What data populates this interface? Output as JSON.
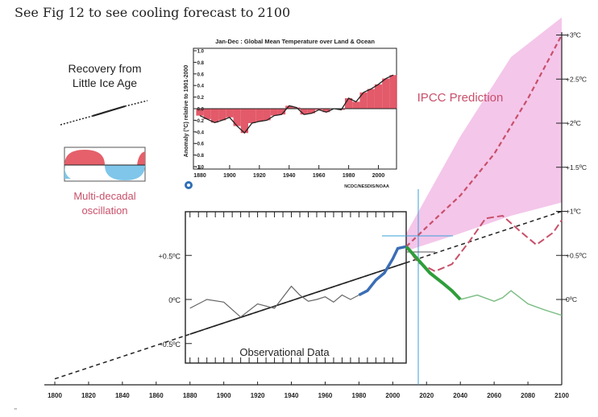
{
  "page": {
    "caption": "See Fig 12 to see cooling forecast to 2100",
    "footer_mark": "\""
  },
  "colors": {
    "ipcc": "#c8506a",
    "ipcc_fill": "#f4c6ea",
    "obs_blue": "#3b6db5",
    "forecast_green": "#2e9e3a",
    "forecast_light": "#7fbf87",
    "trend": "#222222",
    "guide_blue": "#3aa0d6",
    "inset_bar": "#e0485a",
    "osc_red": "#e5606a",
    "osc_blue": "#7fc6ea"
  },
  "chart_data": [
    {
      "type": "line",
      "title": "",
      "x_ticks": [
        "1800",
        "1820",
        "1840",
        "1860",
        "1880",
        "1900",
        "1920",
        "1940",
        "1960",
        "1980",
        "2000",
        "2020",
        "2040",
        "2060",
        "2080",
        "2100"
      ],
      "right_axis_ticks": [
        "+3ºC",
        "+2.5ºC",
        "+2ºC",
        "+1.5ºC",
        "+1ºC",
        "+0.5ºC",
        "0ºC"
      ],
      "xlim": [
        1800,
        2100
      ],
      "ylim": [
        -0.9,
        3.2
      ],
      "labels": {
        "recovery": [
          "Recovery from",
          "Little  Ice Age"
        ],
        "oscillation": [
          "Multi-decadal",
          "oscillation"
        ],
        "ipcc": "IPCC Prediction"
      },
      "series": [
        {
          "name": "Recovery from Little Ice Age trend",
          "x": [
            1800,
            2100
          ],
          "y": [
            -0.9,
            1.0
          ]
        },
        {
          "name": "IPCC Prediction",
          "x": [
            2008,
            2020,
            2040,
            2060,
            2080,
            2100
          ],
          "y": [
            0.6,
            0.82,
            1.18,
            1.65,
            2.28,
            3.0
          ]
        },
        {
          "name": "IPCC range upper",
          "x": [
            2008,
            2040,
            2070,
            2100
          ],
          "y": [
            0.75,
            1.85,
            2.75,
            3.2
          ]
        },
        {
          "name": "IPCC range lower",
          "x": [
            2008,
            2040,
            2070,
            2100
          ],
          "y": [
            0.55,
            0.75,
            0.95,
            1.1
          ]
        },
        {
          "name": "Multi-decadal oscillation projection",
          "x": [
            2008,
            2015,
            2025,
            2035,
            2045,
            2055,
            2065,
            2075,
            2085,
            2095,
            2100
          ],
          "y": [
            0.6,
            0.42,
            0.32,
            0.4,
            0.65,
            0.92,
            0.95,
            0.78,
            0.62,
            0.76,
            0.9
          ]
        },
        {
          "name": "Cooling forecast",
          "x": [
            2008,
            2015,
            2022,
            2030,
            2035,
            2040
          ],
          "y": [
            0.6,
            0.45,
            0.3,
            0.18,
            0.1,
            0.0
          ]
        },
        {
          "name": "Cooling forecast continuation",
          "x": [
            2040,
            2050,
            2060,
            2065,
            2070,
            2080,
            2090,
            2100
          ],
          "y": [
            0.0,
            0.05,
            -0.02,
            0.02,
            0.1,
            -0.05,
            -0.12,
            -0.18
          ]
        }
      ]
    },
    {
      "type": "line",
      "title": "Observational Data",
      "y_ticks": [
        "+0.5ºC",
        "0ºC",
        "-0.5ºC"
      ],
      "series": [
        {
          "name": "Observational (grey)",
          "x": [
            1880,
            1890,
            1900,
            1910,
            1920,
            1930,
            1940,
            1945,
            1950,
            1955,
            1960,
            1965,
            1970,
            1975,
            1980
          ],
          "y": [
            -0.1,
            0.0,
            -0.03,
            -0.2,
            -0.05,
            -0.1,
            0.15,
            0.05,
            -0.02,
            0.0,
            0.03,
            -0.03,
            0.05,
            0.0,
            0.05
          ]
        },
        {
          "name": "Observational (blue)",
          "x": [
            1980,
            1985,
            1990,
            1995,
            2000,
            2003,
            2008
          ],
          "y": [
            0.05,
            0.1,
            0.22,
            0.3,
            0.46,
            0.58,
            0.6
          ]
        }
      ]
    },
    {
      "type": "bar",
      "title": "Jan-Dec : Global Mean Temperature over Land & Ocean",
      "ylabel": "Anomaly (°C) relative to 1901-2000",
      "source": "NCDC/NESDIS/NOAA",
      "x_ticks": [
        "1880",
        "1900",
        "1920",
        "1940",
        "1960",
        "1980",
        "2000"
      ],
      "y_ticks": [
        "1.0",
        "0.8",
        "0.6",
        "0.4",
        "0.2",
        "0.0",
        "-0.2",
        "-0.4",
        "-0.6",
        "-0.8",
        "-1.0"
      ],
      "ylim": [
        -1.0,
        1.0
      ],
      "x": [
        1880,
        1885,
        1890,
        1895,
        1900,
        1905,
        1910,
        1915,
        1920,
        1925,
        1930,
        1935,
        1940,
        1945,
        1950,
        1955,
        1960,
        1965,
        1970,
        1975,
        1980,
        1985,
        1990,
        1995,
        2000,
        2005,
        2010
      ],
      "values": [
        -0.12,
        -0.18,
        -0.24,
        -0.2,
        -0.15,
        -0.3,
        -0.42,
        -0.25,
        -0.22,
        -0.2,
        -0.12,
        -0.1,
        0.05,
        0.02,
        -0.1,
        -0.08,
        -0.02,
        -0.06,
        0.0,
        -0.02,
        0.18,
        0.12,
        0.28,
        0.34,
        0.42,
        0.52,
        0.58
      ]
    }
  ]
}
